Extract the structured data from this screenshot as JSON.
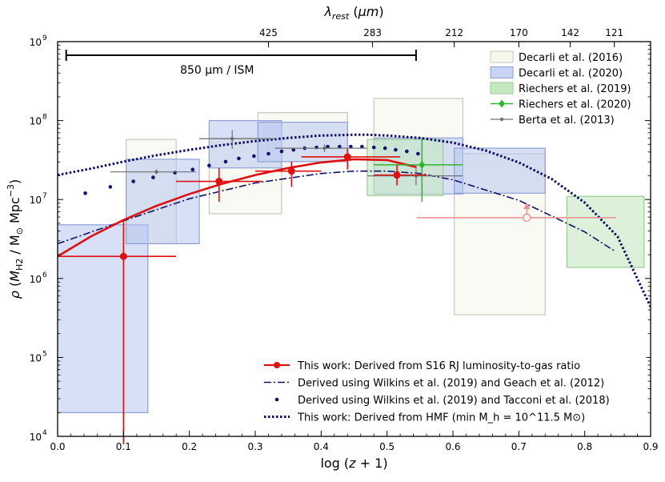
{
  "chart_data": {
    "type": "scatter",
    "xlabel": "log (z + 1)",
    "ylabel": "ρ (M_H2 / M⊙ Mpc⁻³)",
    "top_xlabel": "λ_rest (μm)",
    "xlim": [
      0.0,
      0.9
    ],
    "ylim_log10": [
      4,
      9
    ],
    "yscale": "log",
    "x_ticks": [
      0.0,
      0.1,
      0.2,
      0.3,
      0.4,
      0.5,
      0.6,
      0.7,
      0.8,
      0.9
    ],
    "x_tick_labels": [
      "0.0",
      "0.1",
      "0.2",
      "0.3",
      "0.4",
      "0.5",
      "0.6",
      "0.7",
      "0.8",
      "0.9"
    ],
    "y_ticks_log10": [
      4,
      5,
      6,
      7,
      8,
      9
    ],
    "y_tick_labels": [
      "10",
      "10",
      "10",
      "10",
      "10",
      "10"
    ],
    "y_tick_exponents": [
      "4",
      "5",
      "6",
      "7",
      "8",
      "9"
    ],
    "top_ticks": [
      {
        "x": 0.32,
        "label": "425"
      },
      {
        "x": 0.478,
        "label": "283"
      },
      {
        "x": 0.602,
        "label": "212"
      },
      {
        "x": 0.7,
        "label": "170"
      },
      {
        "x": 0.778,
        "label": "142"
      },
      {
        "x": 0.845,
        "label": "121"
      }
    ],
    "annotation": {
      "text": "850 μm / ISM",
      "x_start": 0.013,
      "x_end": 0.544
    },
    "boxes_decarli2016": [
      {
        "x0": 0.104,
        "x1": 0.18,
        "y0": 6.44,
        "y1": 7.76
      },
      {
        "x0": 0.23,
        "x1": 0.34,
        "y0": 6.82,
        "y1": 7.78
      },
      {
        "x0": 0.304,
        "x1": 0.44,
        "y0": 7.48,
        "y1": 8.1
      },
      {
        "x0": 0.48,
        "x1": 0.615,
        "y0": 7.3,
        "y1": 8.28
      },
      {
        "x0": 0.602,
        "x1": 0.74,
        "y0": 5.54,
        "y1": 7.58
      }
    ],
    "boxes_decarli2020": [
      {
        "x0": 0.0,
        "x1": 0.137,
        "y0": 4.3,
        "y1": 6.68
      },
      {
        "x0": 0.104,
        "x1": 0.215,
        "y0": 6.44,
        "y1": 7.51
      },
      {
        "x0": 0.23,
        "x1": 0.34,
        "y0": 7.4,
        "y1": 8.0
      },
      {
        "x0": 0.304,
        "x1": 0.44,
        "y0": 7.48,
        "y1": 7.98
      },
      {
        "x0": 0.48,
        "x1": 0.615,
        "y0": 7.07,
        "y1": 7.78
      },
      {
        "x0": 0.602,
        "x1": 0.74,
        "y0": 7.08,
        "y1": 7.65
      }
    ],
    "boxes_riechers2019": [
      {
        "x0": 0.47,
        "x1": 0.585,
        "y0": 7.05,
        "y1": 7.76
      },
      {
        "x0": 0.773,
        "x1": 0.89,
        "y0": 6.14,
        "y1": 7.04
      }
    ],
    "riechers2020": {
      "x": 0.553,
      "y": 7.44,
      "xerr": [
        0.48,
        0.615
      ],
      "yerr": [
        6.97,
        7.78
      ]
    },
    "berta2013": [
      {
        "x": 0.15,
        "y": 7.35,
        "xerr": [
          0.08,
          0.21
        ],
        "yerr": [
          7.32,
          7.38
        ]
      },
      {
        "x": 0.265,
        "y": 7.77,
        "xerr": [
          0.215,
          0.332
        ],
        "yerr": [
          7.64,
          7.88
        ]
      },
      {
        "x": 0.405,
        "y": 7.65,
        "xerr": [
          0.33,
          0.47
        ],
        "yerr": [
          7.6,
          7.7
        ]
      },
      {
        "x": 0.544,
        "y": 7.3,
        "xerr": [
          0.47,
          0.615
        ],
        "yerr": [
          7.18,
          7.42
        ]
      }
    ],
    "this_work_points": [
      {
        "x": 0.1,
        "y": 6.28,
        "xerr": [
          0.0,
          0.18
        ],
        "yerr": [
          3.9,
          6.73
        ]
      },
      {
        "x": 0.245,
        "y": 7.23,
        "xerr": [
          0.18,
          0.31
        ],
        "yerr": [
          6.97,
          7.4
        ]
      },
      {
        "x": 0.355,
        "y": 7.36,
        "xerr": [
          0.3,
          0.4
        ],
        "yerr": [
          7.16,
          7.48
        ]
      },
      {
        "x": 0.44,
        "y": 7.54,
        "xerr": [
          0.37,
          0.52
        ],
        "yerr": [
          7.38,
          7.64
        ]
      },
      {
        "x": 0.515,
        "y": 7.31,
        "xerr": [
          0.48,
          0.56
        ],
        "yerr": [
          7.18,
          7.44
        ]
      }
    ],
    "this_work_curve": {
      "x": [
        0.0,
        0.05,
        0.1,
        0.15,
        0.2,
        0.25,
        0.3,
        0.35,
        0.4,
        0.45,
        0.5,
        0.545
      ],
      "y": [
        6.28,
        6.53,
        6.74,
        6.92,
        7.07,
        7.2,
        7.31,
        7.4,
        7.47,
        7.51,
        7.5,
        7.41
      ]
    },
    "lower_limit": {
      "x": 0.712,
      "y": 6.77,
      "xerr": [
        0.545,
        0.848
      ],
      "arrow_to": 6.96
    },
    "wilkins_geach_curve": {
      "x": [
        0.0,
        0.1,
        0.2,
        0.3,
        0.4,
        0.45,
        0.5,
        0.55,
        0.6,
        0.7,
        0.8,
        0.845
      ],
      "y": [
        6.44,
        6.73,
        7.01,
        7.21,
        7.33,
        7.36,
        7.36,
        7.33,
        7.25,
        6.99,
        6.59,
        6.35
      ]
    },
    "wilkins_tacconi_points": {
      "x": [
        0.042,
        0.08,
        0.115,
        0.145,
        0.178,
        0.205,
        0.23,
        0.255,
        0.275,
        0.298,
        0.32,
        0.34,
        0.358,
        0.375,
        0.393,
        0.41,
        0.428,
        0.445,
        0.462,
        0.48,
        0.497,
        0.513,
        0.53,
        0.547
      ],
      "y": [
        7.08,
        7.16,
        7.23,
        7.28,
        7.34,
        7.38,
        7.43,
        7.48,
        7.52,
        7.55,
        7.58,
        7.61,
        7.63,
        7.65,
        7.66,
        7.67,
        7.67,
        7.67,
        7.67,
        7.66,
        7.65,
        7.63,
        7.61,
        7.58
      ]
    },
    "hmf_curve": {
      "x": [
        0.0,
        0.05,
        0.1,
        0.15,
        0.2,
        0.25,
        0.3,
        0.35,
        0.4,
        0.45,
        0.47,
        0.5,
        0.55,
        0.6,
        0.65,
        0.7,
        0.75,
        0.8,
        0.85,
        0.9
      ],
      "y": [
        7.31,
        7.39,
        7.48,
        7.56,
        7.63,
        7.69,
        7.74,
        7.78,
        7.81,
        7.82,
        7.82,
        7.81,
        7.78,
        7.72,
        7.62,
        7.47,
        7.26,
        6.96,
        6.53,
        5.64
      ]
    },
    "legend_top": [
      {
        "key": "d16",
        "label": "Decarli et al. (2016)"
      },
      {
        "key": "d20",
        "label": "Decarli et al. (2020)"
      },
      {
        "key": "r19",
        "label": "Riechers et al. (2019)"
      },
      {
        "key": "r20",
        "label": "Riechers et al. (2020)"
      },
      {
        "key": "berta",
        "label": "Berta et al. (2013)"
      }
    ],
    "legend_bottom": [
      {
        "key": "tw",
        "label": "This work: Derived from S16 RJ luminosity-to-gas ratio"
      },
      {
        "key": "wg",
        "label": "Derived using Wilkins et al. (2019) and Geach et al. (2012)"
      },
      {
        "key": "wt",
        "label": "Derived using Wilkins et al. (2019) and Tacconi et al. (2018)"
      },
      {
        "key": "hmf",
        "label": "This work: Derived from HMF (min M_h = 10^11.5 M⊙)"
      }
    ],
    "colors": {
      "decarli2016_fill": "#f7f7ec",
      "decarli2016_edge": "#c8c8bc",
      "decarli2020_fill": "#b6c6ef",
      "decarli2020_edge": "#8ea0d6",
      "riechers2019_fill": "#c6e8c1",
      "riechers2019_edge": "#9acb94",
      "riechers2020": "#2fb52f",
      "berta2013": "#707070",
      "this_work": "#dd1111",
      "lower_limit": "#ef8c8c",
      "navy": "#10106a"
    }
  }
}
